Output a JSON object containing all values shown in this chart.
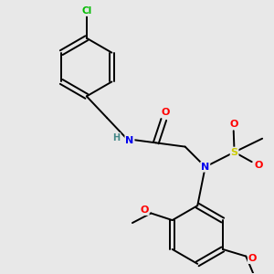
{
  "background_color": "#e8e8e8",
  "bond_color": "#000000",
  "atom_colors": {
    "N": "#0000ee",
    "O": "#ff0000",
    "S": "#cccc00",
    "Cl": "#00bb00",
    "H": "#448888",
    "C": "#000000"
  },
  "figsize": [
    3.0,
    3.0
  ],
  "dpi": 100
}
